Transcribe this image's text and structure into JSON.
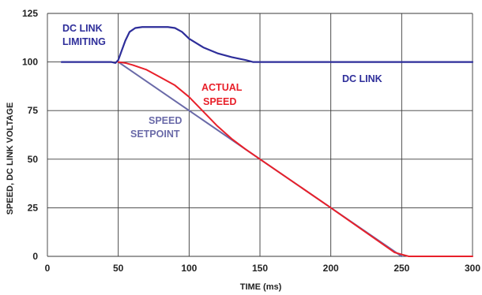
{
  "chart_data": {
    "type": "line",
    "title": "",
    "xlabel": "TIME (ms)",
    "ylabel": "SPEED, DC LINK VOLTAGE",
    "xlim": [
      0,
      300
    ],
    "ylim": [
      0,
      125
    ],
    "grid": true,
    "legend": "none",
    "x_ticks": [
      "0",
      "50",
      "100",
      "150",
      "200",
      "250",
      "300"
    ],
    "y_ticks": [
      "0",
      "25",
      "50",
      "75",
      "100",
      "125"
    ],
    "series": [
      {
        "name": "DC LINK",
        "color": "#2e2e9a",
        "points": [
          [
            10,
            100
          ],
          [
            45,
            100
          ],
          [
            48,
            99.5
          ],
          [
            50,
            101
          ],
          [
            52,
            105
          ],
          [
            55,
            111
          ],
          [
            58,
            115.5
          ],
          [
            62,
            117.5
          ],
          [
            67,
            118
          ],
          [
            75,
            118
          ],
          [
            85,
            118
          ],
          [
            90,
            117.5
          ],
          [
            95,
            115.5
          ],
          [
            100,
            112
          ],
          [
            110,
            107.5
          ],
          [
            120,
            104.5
          ],
          [
            130,
            102.5
          ],
          [
            140,
            101
          ],
          [
            145,
            100
          ],
          [
            150,
            100
          ],
          [
            200,
            100
          ],
          [
            250,
            100
          ],
          [
            300,
            100
          ]
        ]
      },
      {
        "name": "ACTUAL SPEED",
        "color": "#e8202a",
        "points": [
          [
            50,
            100
          ],
          [
            55,
            99.5
          ],
          [
            60,
            98.5
          ],
          [
            70,
            96
          ],
          [
            80,
            92
          ],
          [
            90,
            88
          ],
          [
            100,
            82
          ],
          [
            110,
            74.5
          ],
          [
            120,
            67
          ],
          [
            130,
            60.5
          ],
          [
            140,
            55
          ],
          [
            150,
            50
          ],
          [
            200,
            25
          ],
          [
            245,
            2
          ],
          [
            250,
            1
          ],
          [
            255,
            0
          ],
          [
            300,
            0
          ]
        ]
      },
      {
        "name": "SPEED SETPOINT",
        "color": "#6a6aa8",
        "points": [
          [
            50,
            100
          ],
          [
            150,
            50
          ],
          [
            250,
            0
          ]
        ]
      }
    ],
    "annotations": [
      {
        "id": "dc_link_limiting_1",
        "text": "DC LINK",
        "color": "#2e2e9a"
      },
      {
        "id": "dc_link_limiting_2",
        "text": "LIMITING",
        "color": "#2e2e9a"
      },
      {
        "id": "dc_link",
        "text": "DC LINK",
        "color": "#2e2e9a"
      },
      {
        "id": "actual_speed_1",
        "text": "ACTUAL",
        "color": "#e8202a"
      },
      {
        "id": "actual_speed_2",
        "text": "SPEED",
        "color": "#e8202a"
      },
      {
        "id": "speed_setpoint_1",
        "text": "SPEED",
        "color": "#6a6aa8"
      },
      {
        "id": "speed_setpoint_2",
        "text": "SETPOINT",
        "color": "#6a6aa8"
      }
    ]
  }
}
